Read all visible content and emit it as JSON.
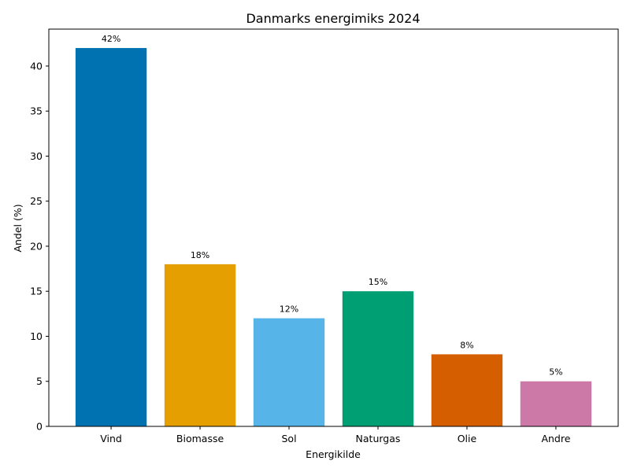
{
  "chart_data": {
    "type": "bar",
    "title": "Danmarks energimiks 2024",
    "xlabel": "Energikilde",
    "ylabel": "Andel (%)",
    "categories": [
      "Vind",
      "Biomasse",
      "Sol",
      "Naturgas",
      "Olie",
      "Andre"
    ],
    "values": [
      42,
      18,
      12,
      15,
      8,
      5
    ],
    "data_labels": [
      "42%",
      "18%",
      "12%",
      "15%",
      "8%",
      "5%"
    ],
    "colors": [
      "#0072b2",
      "#e69f00",
      "#56b4e9",
      "#009e73",
      "#d55e00",
      "#cc79a7"
    ],
    "ylim": [
      0,
      44.1
    ],
    "yticks": [
      0,
      5,
      10,
      15,
      20,
      25,
      30,
      35,
      40
    ],
    "grid": false,
    "legend": "none"
  }
}
